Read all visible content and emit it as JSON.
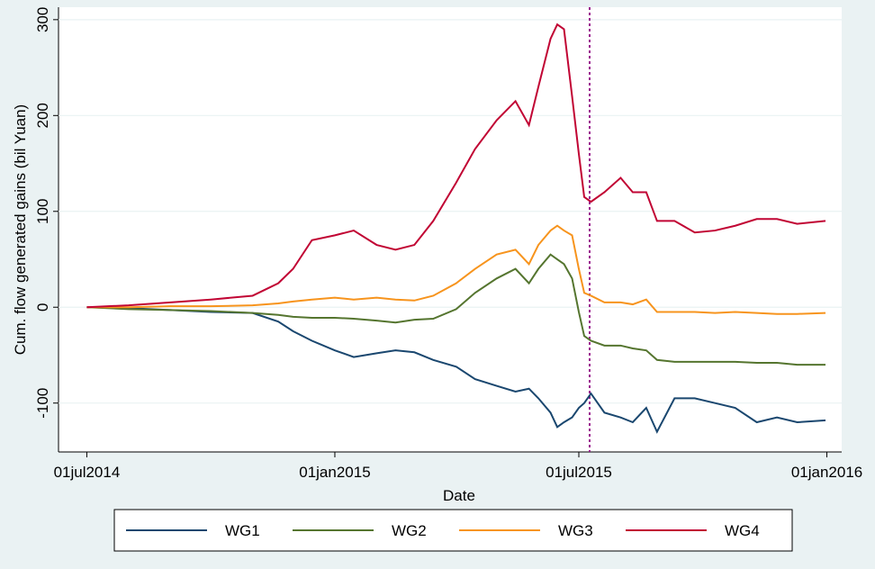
{
  "chart_data": {
    "type": "line",
    "x_label": "Date",
    "y_label": "Cum. flow generated gains (bil Yuan)",
    "x": [
      "2014-07-01",
      "2014-08-01",
      "2014-09-01",
      "2014-10-01",
      "2014-11-01",
      "2014-11-20",
      "2014-12-01",
      "2014-12-15",
      "2015-01-01",
      "2015-01-15",
      "2015-02-01",
      "2015-02-15",
      "2015-03-01",
      "2015-03-15",
      "2015-04-01",
      "2015-04-15",
      "2015-05-01",
      "2015-05-15",
      "2015-05-25",
      "2015-06-01",
      "2015-06-10",
      "2015-06-15",
      "2015-06-20",
      "2015-06-26",
      "2015-07-01",
      "2015-07-05",
      "2015-07-10",
      "2015-07-20",
      "2015-08-01",
      "2015-08-10",
      "2015-08-20",
      "2015-08-28",
      "2015-09-10",
      "2015-09-25",
      "2015-10-10",
      "2015-10-25",
      "2015-11-10",
      "2015-11-25",
      "2015-12-10",
      "2015-12-31"
    ],
    "series": [
      {
        "name": "WG1",
        "color": "#1a476f",
        "values": [
          0,
          -1,
          -3,
          -5,
          -6,
          -15,
          -25,
          -35,
          -45,
          -52,
          -48,
          -45,
          -47,
          -55,
          -62,
          -75,
          -82,
          -88,
          -85,
          -95,
          -110,
          -125,
          -120,
          -115,
          -105,
          -100,
          -90,
          -110,
          -115,
          -120,
          -105,
          -130,
          -95,
          -95,
          -100,
          -105,
          -120,
          -115,
          -120,
          -118
        ]
      },
      {
        "name": "WG2",
        "color": "#55752f",
        "values": [
          0,
          -2,
          -3,
          -4,
          -6,
          -8,
          -10,
          -11,
          -11,
          -12,
          -14,
          -16,
          -13,
          -12,
          -2,
          15,
          30,
          40,
          25,
          40,
          55,
          50,
          45,
          30,
          -5,
          -30,
          -35,
          -40,
          -40,
          -43,
          -45,
          -55,
          -57,
          -57,
          -57,
          -57,
          -58,
          -58,
          -60,
          -60
        ]
      },
      {
        "name": "WG3",
        "color": "#f7941d",
        "values": [
          0,
          0,
          1,
          1,
          2,
          4,
          6,
          8,
          10,
          8,
          10,
          8,
          7,
          12,
          25,
          40,
          55,
          60,
          45,
          65,
          80,
          85,
          80,
          75,
          40,
          15,
          12,
          5,
          5,
          3,
          8,
          -5,
          -5,
          -5,
          -6,
          -5,
          -6,
          -7,
          -7,
          -6
        ]
      },
      {
        "name": "WG4",
        "color": "#c10534",
        "values": [
          0,
          2,
          5,
          8,
          12,
          25,
          40,
          70,
          75,
          80,
          65,
          60,
          65,
          90,
          130,
          165,
          195,
          215,
          190,
          230,
          280,
          295,
          290,
          220,
          160,
          115,
          110,
          120,
          135,
          120,
          120,
          90,
          90,
          78,
          80,
          85,
          92,
          92,
          87,
          90
        ]
      }
    ],
    "xlim": [
      "2014-06-10",
      "2016-01-12"
    ],
    "xticks": [
      {
        "value": "2014-07-01",
        "label": "01jul2014"
      },
      {
        "value": "2015-01-01",
        "label": "01jan2015"
      },
      {
        "value": "2015-07-01",
        "label": "01jul2015"
      },
      {
        "value": "2016-01-01",
        "label": "01jan2016"
      }
    ],
    "ylim": [
      -151,
      313
    ],
    "yticks": [
      -100,
      0,
      100,
      200,
      300
    ],
    "vline": "2015-07-09",
    "grid": true,
    "legend": "bottom"
  }
}
